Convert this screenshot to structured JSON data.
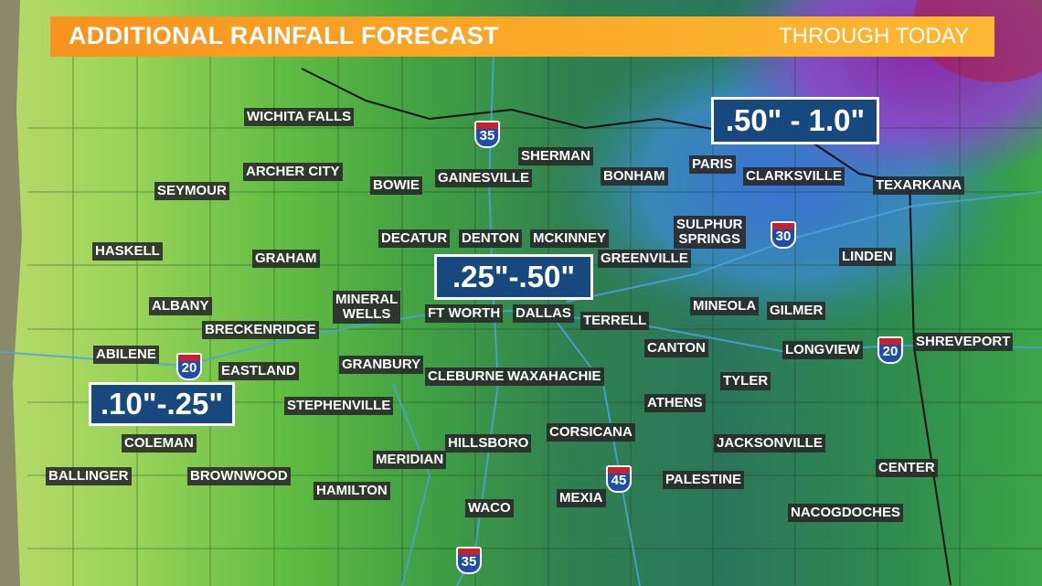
{
  "header": {
    "title": "ADDITIONAL RAINFALL FORECAST",
    "subtitle": "THROUGH TODAY"
  },
  "ranges": [
    ".50\" - 1.0\"",
    ".25\"-.50\"",
    ".10\"-.25\""
  ],
  "highways": [
    "35",
    "30",
    "20",
    "20",
    "45",
    "35"
  ],
  "cities": [
    "WICHITA FALLS",
    "SHERMAN",
    "ARCHER CITY",
    "BONHAM",
    "PARIS",
    "CLARKSVILLE",
    "TEXARKANA",
    "SEYMOUR",
    "BOWIE",
    "GAINESVILLE",
    "SULPHUR\nSPRINGS",
    "DECATUR",
    "DENTON",
    "MCKINNEY",
    "HASKELL",
    "GRAHAM",
    "GREENVILLE",
    "LINDEN",
    "MINERAL\nWELLS",
    "ALBANY",
    "MINEOLA",
    "GILMER",
    "FT WORTH",
    "DALLAS",
    "TERRELL",
    "BRECKENRIDGE",
    "SHREVEPORT",
    "CANTON",
    "LONGVIEW",
    "ABILENE",
    "GRANBURY",
    "EASTLAND",
    "CLEBURNE",
    "WAXAHACHIE",
    "TYLER",
    "STEPHENVILLE",
    "ATHENS",
    "CORSICANA",
    "COLEMAN",
    "HILLSBORO",
    "JACKSONVILLE",
    "MERIDIAN",
    "BALLINGER",
    "BROWNWOOD",
    "CENTER",
    "PALESTINE",
    "HAMILTON",
    "MEXIA",
    "WACO",
    "NACOGDOCHES"
  ]
}
